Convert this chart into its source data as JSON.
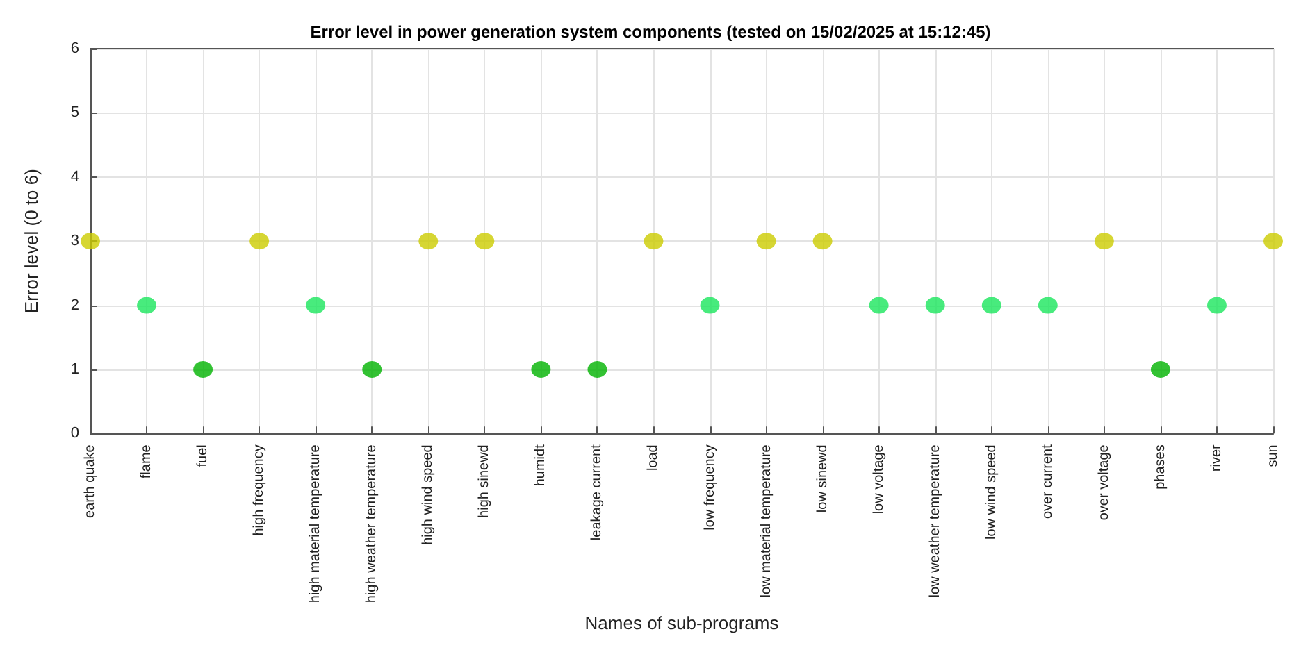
{
  "chart_data": {
    "type": "scatter",
    "title": "Error level in power generation system components (tested on 15/02/2025 at 15:12:45)",
    "xlabel": "Names of sub-programs",
    "ylabel": "Error level (0 to 6)",
    "categories": [
      "earth quake",
      "flame",
      "fuel",
      "high frequency",
      "high material temperature",
      "high weather temperature",
      "high wind speed",
      "high sinewd",
      "humidt",
      "leakage current",
      "load",
      "low frequency",
      "low material temperature",
      "low sinewd",
      "low voltage",
      "low weather temperature",
      "low wind speed",
      "over current",
      "over voltage",
      "phases",
      "river",
      "sun"
    ],
    "values": [
      3,
      2,
      1,
      3,
      2,
      1,
      3,
      3,
      1,
      1,
      3,
      2,
      3,
      3,
      2,
      2,
      2,
      2,
      3,
      1,
      2,
      3
    ],
    "colors": [
      "#cccc00",
      "#1ae65c",
      "#00b300",
      "#cccc00",
      "#1ae65c",
      "#00b300",
      "#cccc00",
      "#cccc00",
      "#00b300",
      "#00b300",
      "#cccc00",
      "#1ae65c",
      "#cccc00",
      "#cccc00",
      "#1ae65c",
      "#1ae65c",
      "#1ae65c",
      "#1ae65c",
      "#cccc00",
      "#00b300",
      "#1ae65c",
      "#cccc00"
    ],
    "ylim": [
      0,
      6
    ],
    "yticks": [
      0,
      1,
      2,
      3,
      4,
      5,
      6
    ],
    "grid": true,
    "marker": "circle"
  }
}
